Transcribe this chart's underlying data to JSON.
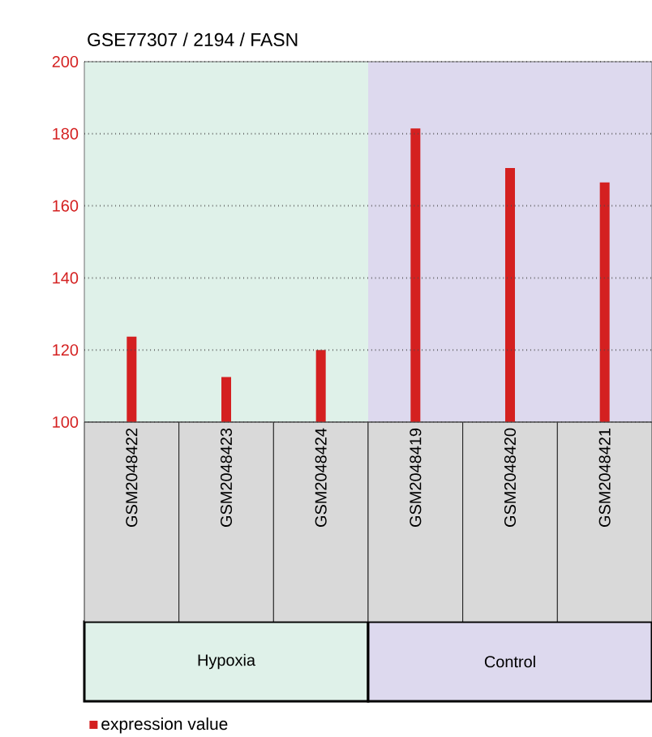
{
  "chart_data": {
    "type": "bar",
    "title": "GSE77307 / 2194 / FASN",
    "categories": [
      "GSM2048422",
      "GSM2048423",
      "GSM2048424",
      "GSM2048419",
      "GSM2048420",
      "GSM2048421"
    ],
    "series": [
      {
        "name": "expression value",
        "color": "#d42020",
        "values": [
          123.7,
          112.5,
          120,
          181.5,
          170.5,
          166.5
        ]
      }
    ],
    "ylim": [
      100,
      200
    ],
    "yticks": [
      100,
      120,
      140,
      160,
      180,
      200
    ],
    "grid": "y",
    "legend": "bottom",
    "annotations": [
      "Hypoxia",
      "Control"
    ],
    "bands": [
      {
        "axis": "x",
        "from": "GSM2048422",
        "to": "GSM2048424",
        "color": "#dff1e9"
      },
      {
        "axis": "x",
        "from": "GSM2048419",
        "to": "GSM2048421",
        "color": "#ddd9ee"
      }
    ]
  }
}
